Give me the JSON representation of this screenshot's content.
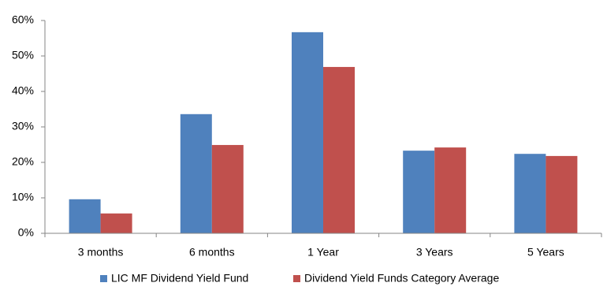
{
  "chart_data": {
    "type": "bar",
    "categories": [
      "3 months",
      "6 months",
      "1 Year",
      "3 Years",
      "5 Years"
    ],
    "series": [
      {
        "name": "LIC MF Dividend Yield Fund",
        "color": "#4f81bd",
        "values": [
          9.6,
          33.6,
          56.7,
          23.3,
          22.4
        ]
      },
      {
        "name": "Dividend Yield Funds Category Average",
        "color": "#c0504d",
        "values": [
          5.6,
          24.9,
          46.9,
          24.2,
          21.8
        ]
      }
    ],
    "ylim": [
      0,
      60
    ],
    "yticks": [
      {
        "value": 0,
        "label": "0%"
      },
      {
        "value": 10,
        "label": "10%"
      },
      {
        "value": 20,
        "label": "20%"
      },
      {
        "value": 30,
        "label": "30%"
      },
      {
        "value": 40,
        "label": "40%"
      },
      {
        "value": 50,
        "label": "50%"
      },
      {
        "value": 60,
        "label": "60%"
      }
    ],
    "grid": false,
    "legend": "bottom"
  }
}
